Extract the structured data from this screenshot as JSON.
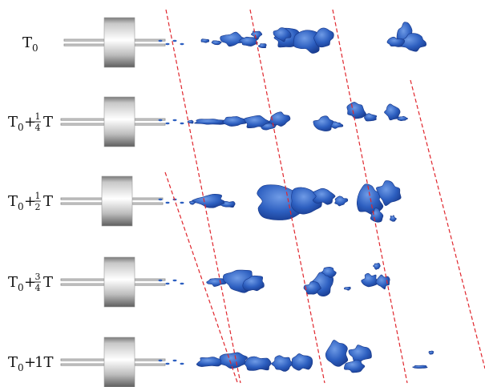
{
  "rows": [
    {
      "base": "T",
      "sub": "0",
      "frac": null
    },
    {
      "base": "T",
      "sub": "0",
      "op": "+",
      "frac": {
        "num": "1",
        "den": "4"
      },
      "tail": "T"
    },
    {
      "base": "T",
      "sub": "0",
      "op": "+",
      "frac": {
        "num": "1",
        "den": "2"
      },
      "tail": "T"
    },
    {
      "base": "T",
      "sub": "0",
      "op": "+",
      "frac": {
        "num": "3",
        "den": "4"
      },
      "tail": "T"
    },
    {
      "base": "T",
      "sub": "0",
      "op": "+",
      "suffix": "1T",
      "frac": null
    }
  ],
  "colors": {
    "vortex_fill": "#2d5fc0",
    "vortex_dark": "#17388a",
    "vortex_light": "#6f9be6",
    "guide_line": "#e0262d",
    "cylinder_light": "#f4f4f4",
    "cylinder_dark": "#6e6e6e",
    "rod": "#8c8c8c"
  }
}
